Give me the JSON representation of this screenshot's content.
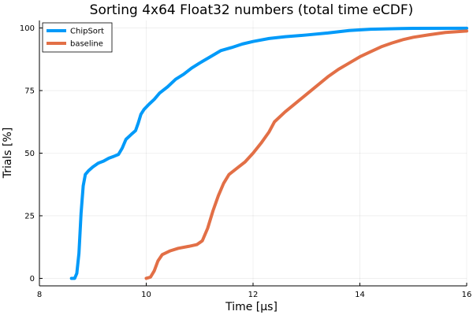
{
  "chart_data": {
    "type": "line",
    "title": "Sorting 4x64 Float32 numbers (total time eCDF)",
    "xlabel": "Time [μs]",
    "ylabel": "Trials [%]",
    "xlim": [
      8,
      16
    ],
    "ylim": [
      -3,
      103
    ],
    "x_ticks": [
      8,
      10,
      12,
      14,
      16
    ],
    "y_ticks": [
      0,
      25,
      50,
      75,
      100
    ],
    "grid": true,
    "legend_position": "top-left",
    "series": [
      {
        "name": "ChipSort",
        "color": "#009af9",
        "points": [
          [
            8.6,
            0
          ],
          [
            8.66,
            0
          ],
          [
            8.7,
            2
          ],
          [
            8.74,
            10
          ],
          [
            8.78,
            26
          ],
          [
            8.82,
            37
          ],
          [
            8.86,
            41.5
          ],
          [
            8.92,
            43
          ],
          [
            9.0,
            44.5
          ],
          [
            9.1,
            46
          ],
          [
            9.2,
            46.8
          ],
          [
            9.3,
            48
          ],
          [
            9.4,
            48.8
          ],
          [
            9.48,
            49.5
          ],
          [
            9.55,
            52
          ],
          [
            9.62,
            55.5
          ],
          [
            9.72,
            57.5
          ],
          [
            9.8,
            59
          ],
          [
            9.85,
            62
          ],
          [
            9.9,
            65.5
          ],
          [
            9.96,
            67.5
          ],
          [
            10.05,
            69.5
          ],
          [
            10.15,
            71.5
          ],
          [
            10.25,
            74
          ],
          [
            10.4,
            76.5
          ],
          [
            10.55,
            79.5
          ],
          [
            10.7,
            81.5
          ],
          [
            10.85,
            84
          ],
          [
            11.0,
            86
          ],
          [
            11.2,
            88.5
          ],
          [
            11.4,
            91
          ],
          [
            11.6,
            92.2
          ],
          [
            11.8,
            93.6
          ],
          [
            12.0,
            94.6
          ],
          [
            12.3,
            95.8
          ],
          [
            12.6,
            96.5
          ],
          [
            13.0,
            97.2
          ],
          [
            13.4,
            98.0
          ],
          [
            13.8,
            99.0
          ],
          [
            14.2,
            99.5
          ],
          [
            14.6,
            99.7
          ],
          [
            15.0,
            99.85
          ],
          [
            16.0,
            99.9
          ]
        ]
      },
      {
        "name": "baseline",
        "color": "#e26f46",
        "points": [
          [
            10.0,
            0
          ],
          [
            10.08,
            0.5
          ],
          [
            10.15,
            3
          ],
          [
            10.22,
            7
          ],
          [
            10.3,
            9.5
          ],
          [
            10.45,
            11
          ],
          [
            10.6,
            12
          ],
          [
            10.8,
            12.8
          ],
          [
            10.95,
            13.5
          ],
          [
            11.05,
            15
          ],
          [
            11.15,
            20
          ],
          [
            11.25,
            27
          ],
          [
            11.35,
            33
          ],
          [
            11.45,
            38
          ],
          [
            11.55,
            41.5
          ],
          [
            11.7,
            44
          ],
          [
            11.85,
            46.5
          ],
          [
            12.0,
            50
          ],
          [
            12.15,
            54
          ],
          [
            12.3,
            58.5
          ],
          [
            12.4,
            62.5
          ],
          [
            12.6,
            66.5
          ],
          [
            12.8,
            70
          ],
          [
            13.0,
            73.5
          ],
          [
            13.2,
            77
          ],
          [
            13.4,
            80.5
          ],
          [
            13.6,
            83.5
          ],
          [
            13.8,
            86
          ],
          [
            14.0,
            88.5
          ],
          [
            14.2,
            90.5
          ],
          [
            14.4,
            92.5
          ],
          [
            14.6,
            94
          ],
          [
            14.8,
            95.3
          ],
          [
            15.0,
            96.3
          ],
          [
            15.3,
            97.3
          ],
          [
            15.6,
            98.2
          ],
          [
            16.0,
            98.8
          ]
        ]
      }
    ]
  }
}
